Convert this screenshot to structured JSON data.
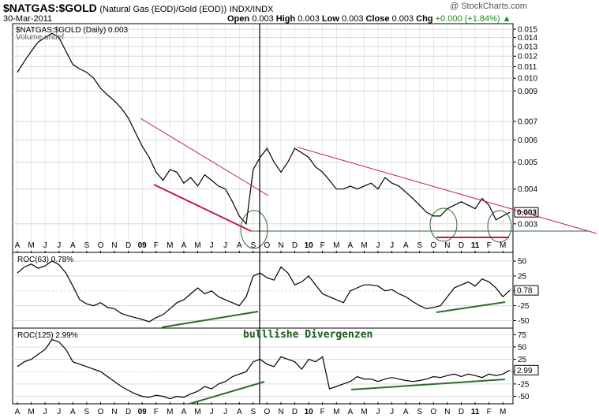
{
  "header": {
    "symbol": "$NATGAS:$GOLD",
    "description": "(Natural Gas (EOD)/Gold (EOD))",
    "exchange": "INDX/INDX",
    "date": "30-Mar-2011",
    "open_label": "Open",
    "open": "0.003",
    "high_label": "High",
    "high": "0.003",
    "low_label": "Low",
    "low": "0.003",
    "close_label": "Close",
    "close": "0.003",
    "chg_label": "Chg",
    "chg": "+0.000 (+1.84%)",
    "brand": "@ StockCharts.com"
  },
  "colors": {
    "price": "#000000",
    "trend": "#c21a4a",
    "support": "#2e6b2e",
    "divergence": "#2e6b2e",
    "grid": "#d9d9d9"
  },
  "chart_data": [
    {
      "type": "line",
      "panel": "price",
      "legend": "$NATGAS:$GOLD (Daily) 0.003",
      "legend2": "Volume undef",
      "scale": "log",
      "ylim": [
        0.0024,
        0.0155
      ],
      "y_ticks": [
        0.015,
        0.014,
        0.013,
        0.012,
        0.011,
        0.01,
        0.009,
        0.007,
        0.006,
        0.005,
        0.004,
        0.003
      ],
      "y_tick_labels": [
        "0.015",
        "0.014",
        "0.013",
        "0.012",
        "0.011",
        "0.010",
        "0.009",
        "0.007",
        "0.006",
        "0.005",
        "0.004",
        "0.003"
      ],
      "last_value_label": "0.003",
      "x_index_range": [
        0,
        35.5
      ],
      "series": [
        {
          "name": "$NATGAS:$GOLD",
          "x": [
            0,
            0.5,
            1,
            1.5,
            2,
            2.5,
            3,
            3.5,
            4,
            4.5,
            5,
            5.5,
            6,
            6.5,
            7,
            7.5,
            8,
            8.5,
            9,
            9.5,
            10,
            10.5,
            11,
            11.5,
            12,
            12.5,
            13,
            13.5,
            14,
            14.5,
            15,
            15.5,
            16,
            16.5,
            17,
            17.5,
            18,
            18.5,
            19,
            19.5,
            20,
            20.5,
            21,
            21.5,
            22,
            22.5,
            23,
            23.5,
            24,
            24.5,
            25,
            25.5,
            26,
            26.5,
            27,
            27.5,
            28,
            28.5,
            29,
            29.5,
            30,
            30.5,
            31,
            31.5,
            32,
            32.5,
            33,
            33.5,
            34,
            34.5,
            35,
            35.5
          ],
          "values": [
            0.0105,
            0.0115,
            0.0125,
            0.0135,
            0.014,
            0.0145,
            0.014,
            0.0125,
            0.0112,
            0.0108,
            0.0105,
            0.01,
            0.0092,
            0.0087,
            0.0083,
            0.0078,
            0.0072,
            0.0064,
            0.0057,
            0.0052,
            0.0046,
            0.0043,
            0.0047,
            0.0046,
            0.0042,
            0.0044,
            0.0041,
            0.0045,
            0.0043,
            0.0041,
            0.004,
            0.0036,
            0.0032,
            0.003,
            0.0047,
            0.0052,
            0.0056,
            0.005,
            0.0046,
            0.005,
            0.0056,
            0.0054,
            0.0052,
            0.0048,
            0.0046,
            0.0043,
            0.004,
            0.004,
            0.0041,
            0.004,
            0.0041,
            0.0042,
            0.004,
            0.0044,
            0.0042,
            0.0041,
            0.0039,
            0.0037,
            0.0035,
            0.0033,
            0.0032,
            0.0032,
            0.0034,
            0.0035,
            0.0036,
            0.0035,
            0.0034,
            0.0037,
            0.0035,
            0.0031,
            0.0032,
            0.0033
          ]
        }
      ]
    },
    {
      "type": "line",
      "panel": "roc63",
      "legend": "ROC(63) 0.78%",
      "ylim": [
        -60,
        62
      ],
      "y_ticks": [
        50,
        25,
        0,
        -25,
        -50
      ],
      "y_tick_labels": [
        "50",
        "25",
        "",
        "-25",
        "-50"
      ],
      "last_value_label": "0.78",
      "series": [
        {
          "name": "ROC(63)",
          "x": [
            0,
            0.5,
            1,
            1.5,
            2,
            2.5,
            3,
            3.5,
            4,
            4.5,
            5,
            5.5,
            6,
            6.5,
            7,
            7.5,
            8,
            8.5,
            9,
            9.5,
            10,
            10.5,
            11,
            11.5,
            12,
            12.5,
            13,
            13.5,
            14,
            14.5,
            15,
            15.5,
            16,
            16.5,
            17,
            17.5,
            18,
            18.5,
            19,
            19.5,
            20,
            20.5,
            21,
            21.5,
            22,
            22.5,
            23,
            23.5,
            24,
            24.5,
            25,
            25.5,
            26,
            26.5,
            27,
            27.5,
            28,
            28.5,
            29,
            29.5,
            30,
            30.5,
            31,
            31.5,
            32,
            32.5,
            33,
            33.5,
            34,
            34.5,
            35,
            35.5
          ],
          "values": [
            30,
            40,
            45,
            38,
            42,
            50,
            44,
            30,
            8,
            -15,
            -22,
            -25,
            -20,
            -28,
            -30,
            -38,
            -42,
            -45,
            -48,
            -52,
            -45,
            -40,
            -30,
            -20,
            -15,
            -5,
            5,
            -5,
            0,
            -10,
            -15,
            -20,
            -25,
            -10,
            25,
            30,
            22,
            18,
            40,
            30,
            10,
            15,
            25,
            10,
            -5,
            -10,
            -15,
            -20,
            0,
            5,
            10,
            10,
            8,
            0,
            2,
            -5,
            -10,
            -18,
            -25,
            -30,
            -28,
            -25,
            -10,
            5,
            10,
            15,
            8,
            20,
            15,
            5,
            -10,
            0.78
          ]
        }
      ]
    },
    {
      "type": "line",
      "panel": "roc125",
      "legend": "ROC(125) 2.99%",
      "ylim": [
        -62,
        85
      ],
      "y_ticks": [
        75,
        50,
        25,
        0,
        -25,
        -50
      ],
      "y_tick_labels": [
        "75",
        "50",
        "25",
        "",
        "-25",
        "-50"
      ],
      "last_value_label": "2.99",
      "series": [
        {
          "name": "ROC(125)",
          "x": [
            0,
            0.5,
            1,
            1.5,
            2,
            2.5,
            3,
            3.5,
            4,
            4.5,
            5,
            5.5,
            6,
            6.5,
            7,
            7.5,
            8,
            8.5,
            9,
            9.5,
            10,
            10.5,
            11,
            11.5,
            12,
            12.5,
            13,
            13.5,
            14,
            14.5,
            15,
            15.5,
            16,
            16.5,
            17,
            17.5,
            18,
            18.5,
            19,
            19.5,
            20,
            20.5,
            21,
            21.5,
            22,
            22.5,
            23,
            23.5,
            24,
            24.5,
            25,
            25.5,
            26,
            26.5,
            27,
            27.5,
            28,
            28.5,
            29,
            29.5,
            30,
            30.5,
            31,
            31.5,
            32,
            32.5,
            33,
            33.5,
            34,
            34.5,
            35,
            35.5
          ],
          "values": [
            10,
            20,
            25,
            35,
            45,
            65,
            60,
            45,
            20,
            15,
            10,
            5,
            0,
            -10,
            -20,
            -30,
            -38,
            -45,
            -50,
            -52,
            -48,
            -50,
            -55,
            -50,
            -52,
            -45,
            -40,
            -30,
            -35,
            -25,
            -20,
            -10,
            -5,
            0,
            20,
            25,
            15,
            10,
            30,
            25,
            20,
            5,
            25,
            20,
            30,
            -35,
            -30,
            -25,
            -20,
            -10,
            -15,
            -15,
            -20,
            -15,
            -12,
            -15,
            -18,
            -20,
            -18,
            -15,
            -10,
            -12,
            -8,
            -5,
            -10,
            -5,
            -8,
            -12,
            -5,
            -8,
            -5,
            2.99
          ]
        }
      ]
    }
  ],
  "x_axis": {
    "labels": [
      "A",
      "M",
      "J",
      "J",
      "A",
      "S",
      "O",
      "N",
      "D",
      "09",
      "F",
      "M",
      "A",
      "M",
      "J",
      "J",
      "A",
      "S",
      "O",
      "N",
      "D",
      "10",
      "F",
      "M",
      "A",
      "M",
      "J",
      "J",
      "A",
      "S",
      "O",
      "N",
      "D",
      "11",
      "F",
      "M"
    ],
    "bold_labels": [
      "09",
      "10",
      "11"
    ]
  },
  "annotations": {
    "divergence_text": "bulllishe Divergenzen"
  }
}
